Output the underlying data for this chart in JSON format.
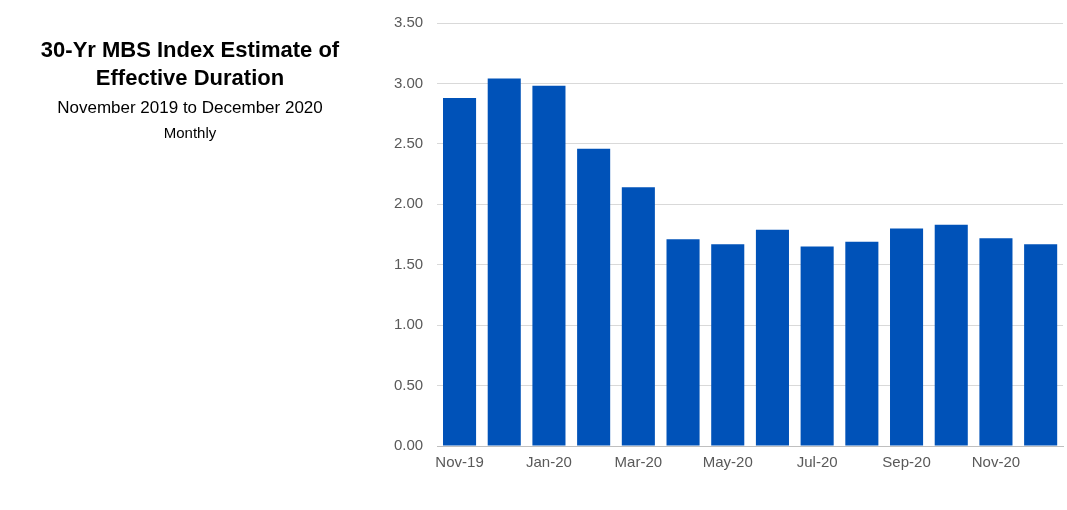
{
  "chart_data": {
    "type": "bar",
    "title": "30-Yr MBS Index Estimate of Effective Duration",
    "subtitle": "November 2019 to December 2020",
    "annotations": [
      "Monthly"
    ],
    "categories": [
      "Nov-19",
      null,
      "Jan-20",
      null,
      "Mar-20",
      null,
      "May-20",
      null,
      "Jul-20",
      null,
      "Sep-20",
      null,
      "Nov-20",
      null
    ],
    "values": [
      2.88,
      3.04,
      2.98,
      2.46,
      2.14,
      1.71,
      1.67,
      1.79,
      1.65,
      1.69,
      1.8,
      1.83,
      1.72,
      1.67
    ],
    "color": "#0052b8",
    "ylim": [
      0,
      3.5
    ],
    "yticks": [
      {
        "value": 0,
        "label": "0.00"
      },
      {
        "value": 0.5,
        "label": "0.50"
      },
      {
        "value": 1,
        "label": "1.00"
      },
      {
        "value": 1.5,
        "label": "1.50"
      },
      {
        "value": 2,
        "label": "2.00"
      },
      {
        "value": 2.5,
        "label": "2.50"
      },
      {
        "value": 3,
        "label": "3.00"
      },
      {
        "value": 3.5,
        "label": "3.50"
      }
    ],
    "grid": "y",
    "legend": false
  }
}
